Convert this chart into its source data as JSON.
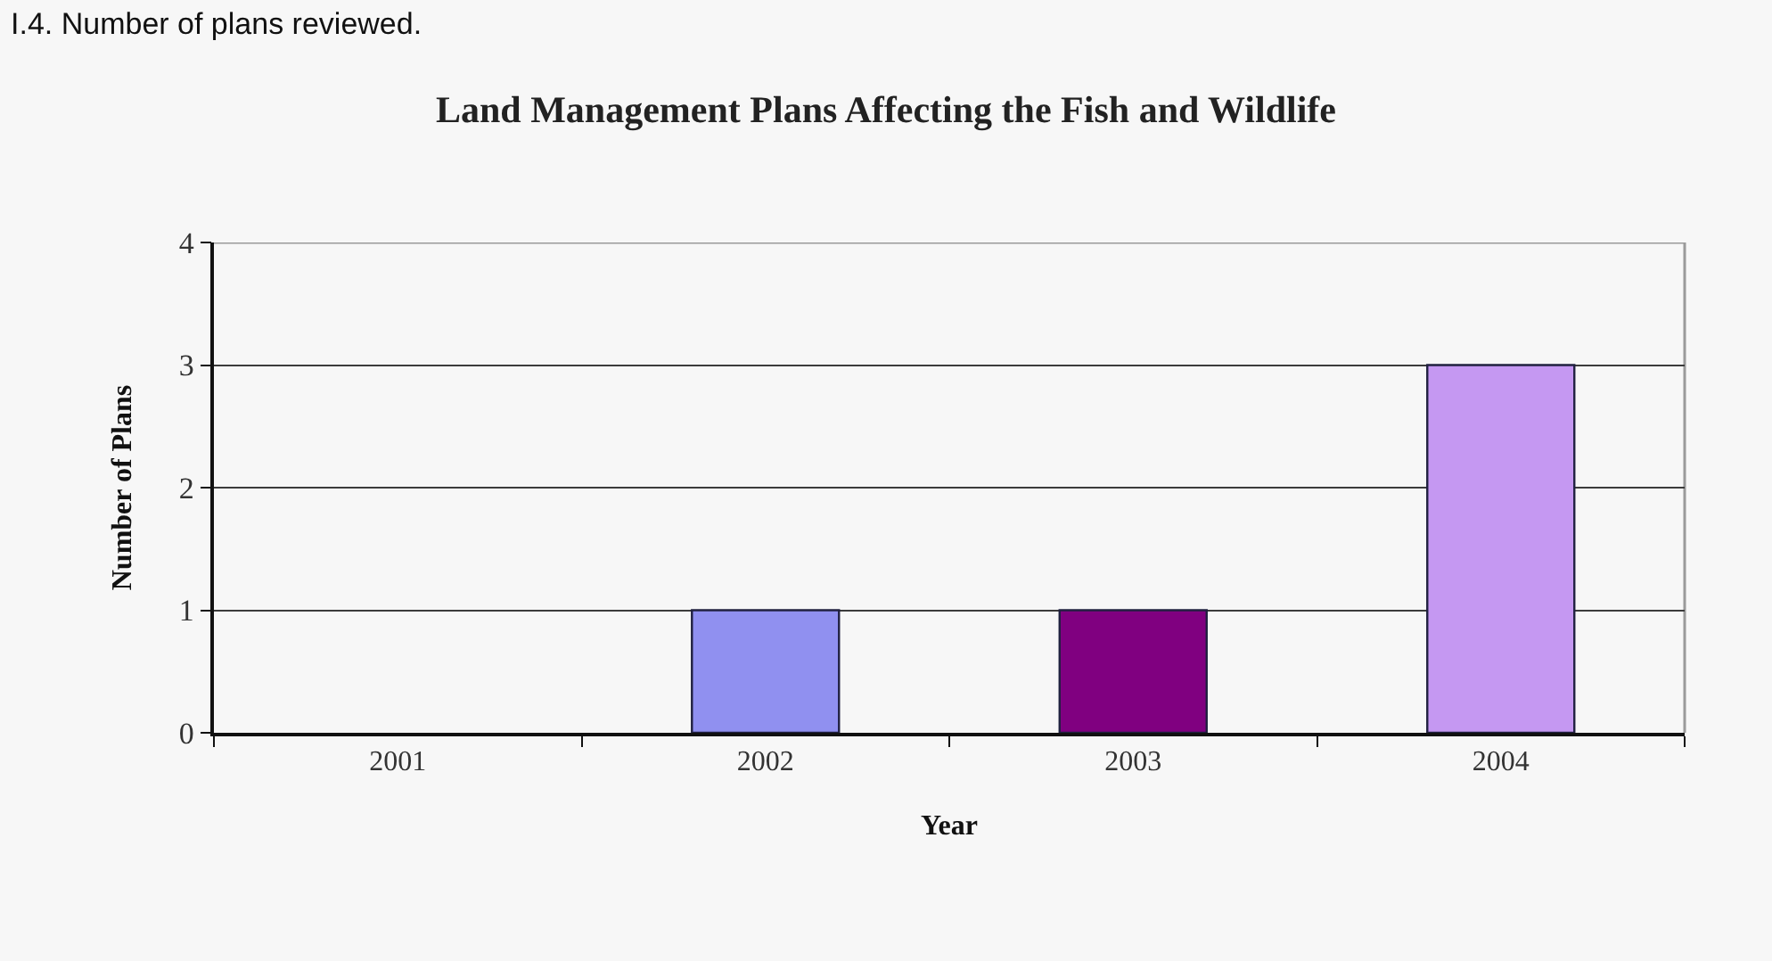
{
  "chart_data": {
    "type": "bar",
    "title": "Land Management Plans Affecting the Fish and Wildlife",
    "xlabel": "Year",
    "ylabel": "Number of Plans",
    "categories": [
      "2001",
      "2002",
      "2003",
      "2004"
    ],
    "values": [
      0,
      1,
      1,
      3
    ],
    "colors": [
      null,
      "#9090f0",
      "#800080",
      "#c598f2"
    ],
    "ylim": [
      0,
      4
    ],
    "yticks": [
      0,
      1,
      2,
      3,
      4
    ],
    "grid": "y",
    "annotations": [
      "I.4. Number of plans reviewed."
    ]
  }
}
